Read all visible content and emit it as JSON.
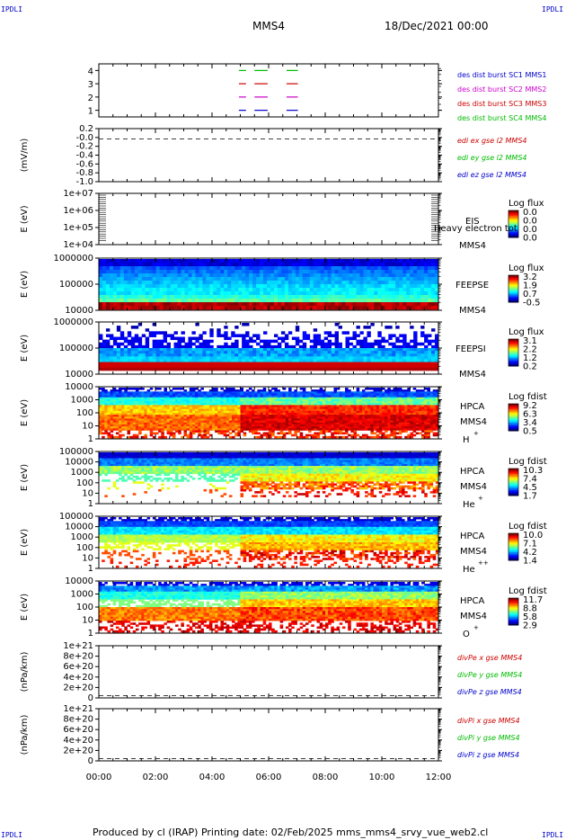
{
  "corners": {
    "top_left": "IPDLI",
    "top_right": "IPDLI",
    "bottom_left": "IPDLI",
    "bottom_right": "IPDLI"
  },
  "header": {
    "spacecraft": "MMS4",
    "date": "18/Dec/2021 00:00"
  },
  "footer": {
    "text": "Produced by cl (IRAP)   Printing date: 02/Feb/2025   mms_mms4_srvy_vue_web2.cl"
  },
  "colors": {
    "mms1": "#0000cc",
    "mms2": "#cc00cc",
    "mms3": "#cc0000",
    "mms4": "#00bb00",
    "x": "#cc0000",
    "y": "#00bb00",
    "z": "#0000cc"
  },
  "chart_data": [
    {
      "type": "line",
      "ylim": [
        0.5,
        4.5
      ],
      "yticks": [
        "4",
        "3",
        "2",
        "1"
      ],
      "x": [
        "00:00",
        "02:00",
        "04:00",
        "06:00",
        "08:00",
        "10:00",
        "12:00"
      ],
      "legend": [
        "des dist burst SC1 MMS1",
        "des dist burst SC2 MMS2",
        "des dist burst SC3 MMS3",
        "des dist burst SC4 MMS4"
      ],
      "series": [
        {
          "name": "des dist burst SC4 MMS4",
          "y": 4,
          "intervals": [
            [
              "04:57",
              "05:12"
            ],
            [
              "05:30",
              "05:58"
            ],
            [
              "06:38",
              "07:02"
            ]
          ]
        },
        {
          "name": "des dist burst SC3 MMS3",
          "y": 3,
          "intervals": [
            [
              "04:57",
              "05:12"
            ],
            [
              "05:30",
              "05:58"
            ],
            [
              "06:38",
              "07:02"
            ]
          ]
        },
        {
          "name": "des dist burst SC2 MMS2",
          "y": 2,
          "intervals": [
            [
              "04:57",
              "05:12"
            ],
            [
              "05:30",
              "05:58"
            ],
            [
              "06:38",
              "07:02"
            ]
          ]
        },
        {
          "name": "des dist burst SC1 MMS1",
          "y": 1,
          "intervals": [
            [
              "04:57",
              "05:12"
            ],
            [
              "05:30",
              "05:58"
            ],
            [
              "06:38",
              "07:02"
            ]
          ]
        }
      ]
    },
    {
      "type": "line",
      "ylabel": "(mV/m)",
      "ylim": [
        -1.05,
        0.25
      ],
      "yticks": [
        "0.2",
        "-0.0",
        "-0.2",
        "-0.4",
        "-0.6",
        "-0.8",
        "-1.0"
      ],
      "legend": [
        "edi ex gse l2 MMS4",
        "edi ey gse l2 MMS4",
        "edi ez gse l2 MMS4"
      ],
      "reference_line": 0
    },
    {
      "type": "heatmap",
      "ylabel": "E (eV)",
      "yticks": [
        "1e+07",
        "1e+06",
        "1e+05",
        "1e+04"
      ],
      "labels": [
        "EIS",
        "MMS4"
      ],
      "overlay_text": "Heavy electron tot",
      "colorbar": {
        "title": "Log flux",
        "ticks": [
          "0.0",
          "0.0",
          "0.0",
          "0.0"
        ]
      },
      "empty": true
    },
    {
      "type": "heatmap",
      "ylabel": "E (eV)",
      "yticks": [
        "1000000",
        "100000",
        "10000"
      ],
      "labels": [
        "FEEPSE",
        "MMS4"
      ],
      "colorbar": {
        "title": "Log flux",
        "ticks": [
          "3.2",
          "1.9",
          "0.7",
          "-0.5"
        ]
      }
    },
    {
      "type": "heatmap",
      "ylabel": "E (eV)",
      "yticks": [
        "1000000",
        "100000",
        "10000"
      ],
      "labels": [
        "FEEPSI",
        "MMS4"
      ],
      "colorbar": {
        "title": "Log flux",
        "ticks": [
          "3.1",
          "2.2",
          "1.2",
          "0.2"
        ]
      }
    },
    {
      "type": "heatmap",
      "ylabel": "E (eV)",
      "yticks": [
        "10000",
        "1000",
        "100",
        "10",
        "1"
      ],
      "labels": [
        "HPCA",
        "MMS4",
        "H",
        "+"
      ],
      "colorbar": {
        "title": "Log fdist",
        "ticks": [
          "9.2",
          "6.3",
          "3.4",
          "0.5"
        ]
      }
    },
    {
      "type": "heatmap",
      "ylabel": "E (eV)",
      "yticks": [
        "100000",
        "10000",
        "1000",
        "100",
        "10",
        "1"
      ],
      "labels": [
        "HPCA",
        "MMS4",
        "He",
        "+"
      ],
      "colorbar": {
        "title": "Log fdist",
        "ticks": [
          "10.3",
          "7.4",
          "4.5",
          "1.7"
        ]
      }
    },
    {
      "type": "heatmap",
      "ylabel": "E (eV)",
      "yticks": [
        "100000",
        "10000",
        "1000",
        "100",
        "10",
        "1"
      ],
      "labels": [
        "HPCA",
        "MMS4",
        "He",
        "++"
      ],
      "colorbar": {
        "title": "Log fdist",
        "ticks": [
          "10.0",
          "7.1",
          "4.2",
          "1.4"
        ]
      }
    },
    {
      "type": "heatmap",
      "ylabel": "E (eV)",
      "yticks": [
        "10000",
        "1000",
        "100",
        "10",
        "1"
      ],
      "labels": [
        "HPCA",
        "MMS4",
        "O",
        "+"
      ],
      "colorbar": {
        "title": "Log fdist",
        "ticks": [
          "11.7",
          "8.8",
          "5.8",
          "2.9"
        ]
      }
    },
    {
      "type": "line",
      "ylabel": "(nPa/km)",
      "yticks": [
        "1e+21",
        "8e+20",
        "6e+20",
        "4e+20",
        "2e+20",
        "0"
      ],
      "ylim": [
        -5e+19,
        1.05e+21
      ],
      "legend": [
        "divPe x gse MMS4",
        "divPe y gse MMS4",
        "divPe z gse MMS4"
      ],
      "reference_line": 0
    },
    {
      "type": "line",
      "ylabel": "(nPa/km)",
      "yticks": [
        "1e+21",
        "8e+20",
        "6e+20",
        "4e+20",
        "2e+20",
        "0"
      ],
      "ylim": [
        -5e+19,
        1.05e+21
      ],
      "legend": [
        "divPi x gse MMS4",
        "divPi y gse MMS4",
        "divPi z gse MMS4"
      ],
      "reference_line": 0,
      "xticks": [
        "00:00",
        "02:00",
        "04:00",
        "06:00",
        "08:00",
        "10:00",
        "12:00"
      ]
    }
  ]
}
